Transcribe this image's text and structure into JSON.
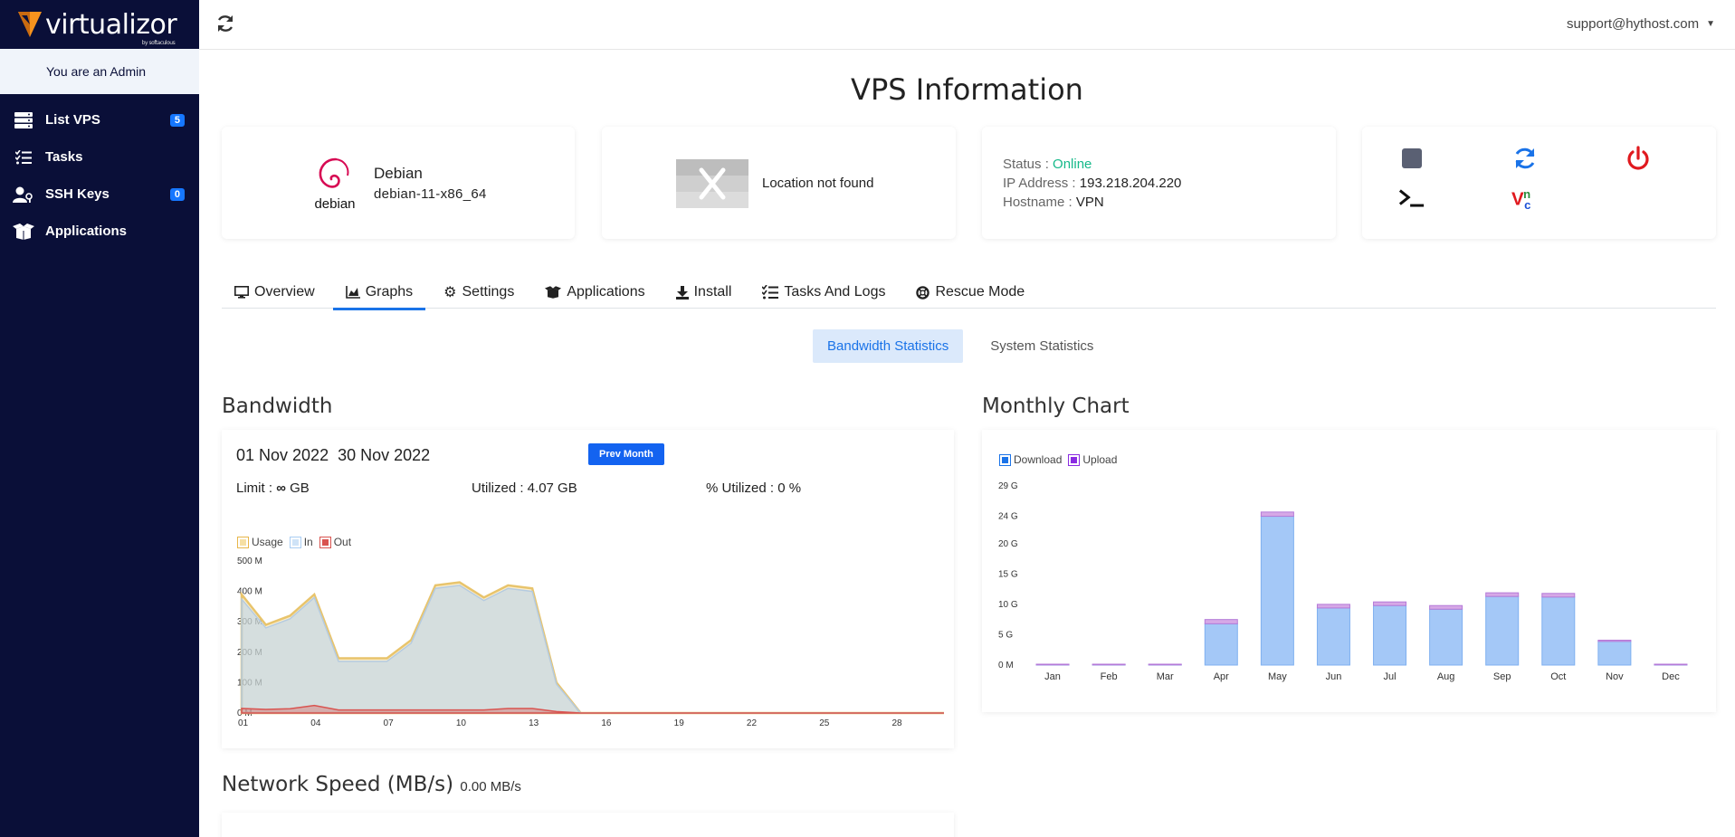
{
  "app": {
    "logo_text": "virtualizor",
    "logo_sub": "by softaculous"
  },
  "sidebar": {
    "admin_text": "You are an Admin",
    "items": [
      {
        "label": "List VPS",
        "icon": "server-list-icon",
        "badge": "5"
      },
      {
        "label": "Tasks",
        "icon": "task-list-icon",
        "badge": ""
      },
      {
        "label": "SSH Keys",
        "icon": "user-key-icon",
        "badge": "0"
      },
      {
        "label": "Applications",
        "icon": "box-open-icon",
        "badge": ""
      }
    ]
  },
  "header": {
    "user": "support@hythost.com"
  },
  "page": {
    "title": "VPS Information"
  },
  "os": {
    "name": "Debian",
    "version": "debian-11-x86_64",
    "logo_text": "debian"
  },
  "location": {
    "text": "Location not found"
  },
  "status": {
    "status_label": "Status :",
    "status_value": "Online",
    "ip_label": "IP Address :",
    "ip_value": "193.218.204.220",
    "host_label": "Hostname :",
    "host_value": "VPN"
  },
  "tabs": [
    {
      "label": "Overview",
      "icon": "desktop-icon"
    },
    {
      "label": "Graphs",
      "icon": "area-chart-icon"
    },
    {
      "label": "Settings",
      "icon": "gear-icon"
    },
    {
      "label": "Applications",
      "icon": "box-open-icon"
    },
    {
      "label": "Install",
      "icon": "download-icon"
    },
    {
      "label": "Tasks And Logs",
      "icon": "task-list-icon"
    },
    {
      "label": "Rescue Mode",
      "icon": "life-ring-icon"
    }
  ],
  "subtabs": {
    "bandwidth": "Bandwidth Statistics",
    "system": "System Statistics"
  },
  "bandwidth": {
    "heading": "Bandwidth",
    "start": "01 Nov 2022",
    "end": "30 Nov 2022",
    "prev_button": "Prev Month",
    "limit_label": "Limit :",
    "limit_unit": "GB",
    "utilized": "Utilized : 4.07 GB",
    "percent": "% Utilized : 0 %"
  },
  "monthly": {
    "heading": "Monthly Chart"
  },
  "network": {
    "heading": "Network Speed (MB/s)",
    "value": "0.00 MB/s"
  },
  "colors": {
    "accent": "#1a73e8",
    "online": "#16b98a",
    "sidebar": "#0a0f38"
  },
  "chart_data": [
    {
      "type": "area",
      "legend": [
        "Usage",
        "In",
        "Out"
      ],
      "legend_colors": [
        "#e8b64a",
        "#a9cdf3",
        "#d9534f"
      ],
      "y_ticks": [
        "0 M",
        "100 M",
        "200 M",
        "300 M",
        "400 M",
        "500 M"
      ],
      "ylim": [
        0,
        500
      ],
      "x_ticks": [
        "01",
        "04",
        "07",
        "10",
        "13",
        "16",
        "19",
        "22",
        "25",
        "28"
      ],
      "x": [
        1,
        2,
        3,
        4,
        5,
        6,
        7,
        8,
        9,
        10,
        11,
        12,
        13,
        14,
        15,
        16,
        17,
        18,
        19,
        20,
        21,
        22,
        23,
        24,
        25,
        26,
        27,
        28,
        29,
        30
      ],
      "series": [
        {
          "name": "Usage",
          "values": [
            390,
            290,
            320,
            390,
            180,
            180,
            180,
            240,
            420,
            430,
            380,
            420,
            410,
            100,
            0,
            0,
            0,
            0,
            0,
            0,
            0,
            0,
            0,
            0,
            0,
            0,
            0,
            0,
            0,
            0
          ]
        },
        {
          "name": "In",
          "values": [
            375,
            280,
            310,
            380,
            170,
            170,
            170,
            230,
            410,
            420,
            370,
            410,
            400,
            95,
            0,
            0,
            0,
            0,
            0,
            0,
            0,
            0,
            0,
            0,
            0,
            0,
            0,
            0,
            0,
            0
          ]
        },
        {
          "name": "Out",
          "values": [
            15,
            12,
            14,
            25,
            10,
            10,
            10,
            10,
            10,
            10,
            10,
            15,
            15,
            5,
            0,
            0,
            0,
            0,
            0,
            0,
            0,
            0,
            0,
            0,
            0,
            0,
            0,
            0,
            0,
            0
          ]
        }
      ]
    },
    {
      "type": "bar",
      "stacked": true,
      "legend": [
        "Download",
        "Upload"
      ],
      "legend_colors": [
        "#1a73e8",
        "#8a2be2"
      ],
      "y_ticks": [
        "0 M",
        "5 G",
        "10 G",
        "15 G",
        "20 G",
        "24 G",
        "29 G"
      ],
      "y_tick_values": [
        0,
        5,
        10,
        15,
        20,
        24.5,
        29.5
      ],
      "ylim": [
        0,
        29.5
      ],
      "categories": [
        "Jan",
        "Feb",
        "Mar",
        "Apr",
        "May",
        "Jun",
        "Jul",
        "Aug",
        "Sep",
        "Oct",
        "Nov",
        "Dec"
      ],
      "series": [
        {
          "name": "Download",
          "values": [
            0.1,
            0.1,
            0.1,
            6.8,
            24.5,
            9.4,
            9.8,
            9.2,
            11.3,
            11.2,
            3.9,
            0.1
          ]
        },
        {
          "name": "Upload",
          "values": [
            0.05,
            0.05,
            0.05,
            0.7,
            0.7,
            0.6,
            0.6,
            0.6,
            0.6,
            0.6,
            0.2,
            0.05
          ]
        }
      ]
    }
  ]
}
